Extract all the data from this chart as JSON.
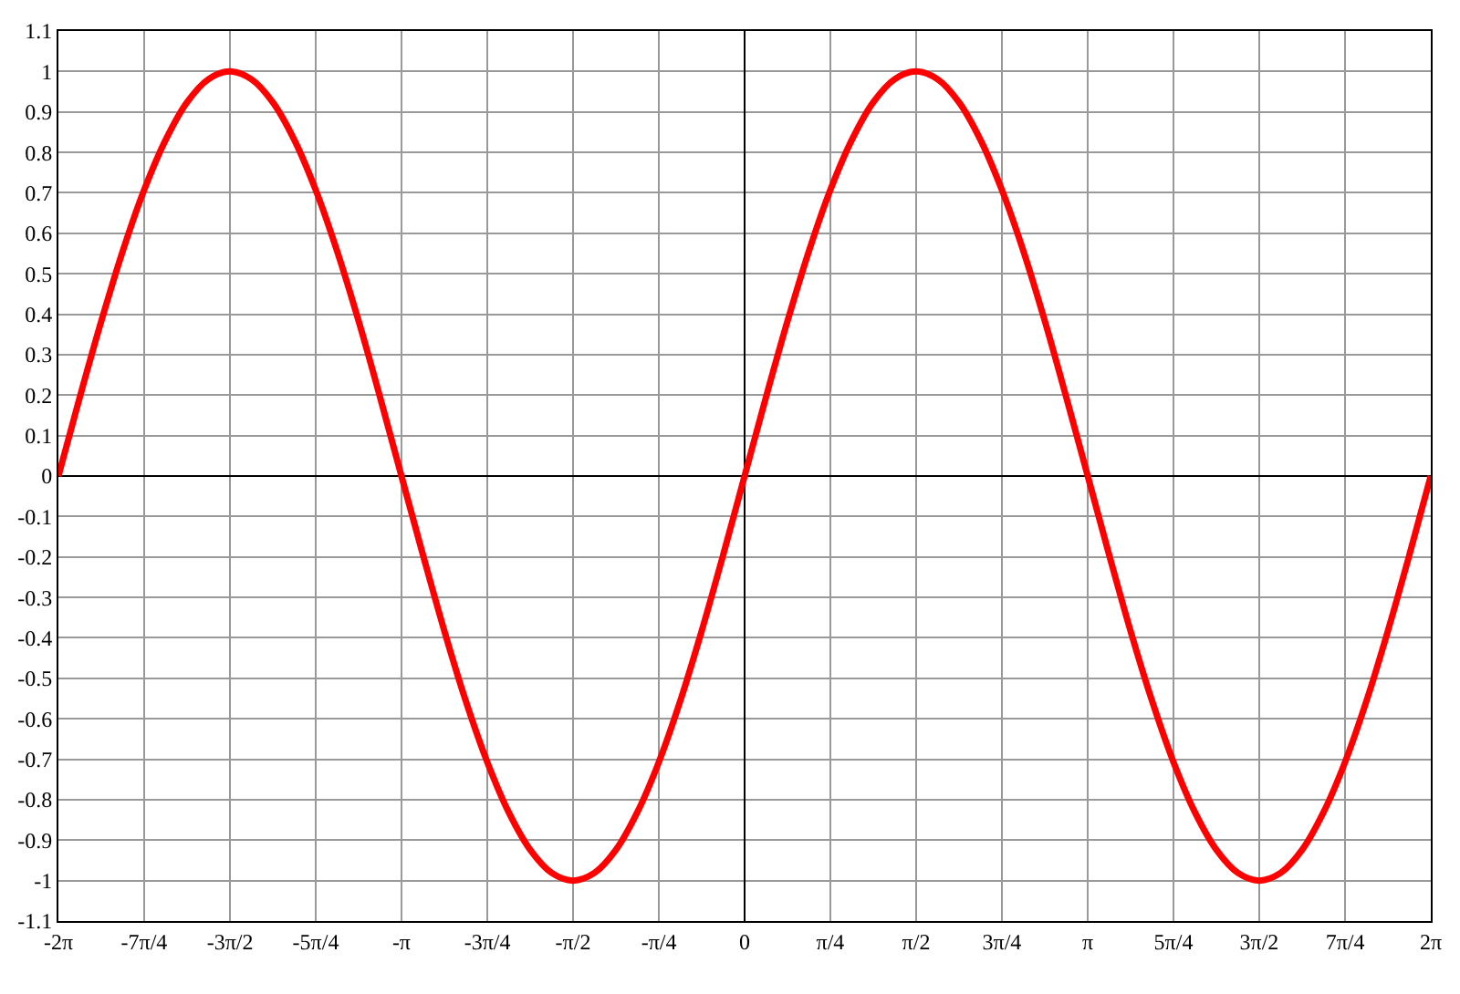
{
  "chart_data": {
    "type": "line",
    "x": [
      -6.283,
      -6.087,
      -5.89,
      -5.694,
      -5.498,
      -5.301,
      -5.105,
      -4.909,
      -4.712,
      -4.516,
      -4.32,
      -4.123,
      -3.927,
      -3.731,
      -3.534,
      -3.338,
      -3.142,
      -2.945,
      -2.749,
      -2.553,
      -2.356,
      -2.16,
      -1.963,
      -1.767,
      -1.571,
      -1.374,
      -1.178,
      -0.982,
      -0.785,
      -0.589,
      -0.393,
      -0.196,
      0,
      0.196,
      0.393,
      0.589,
      0.785,
      0.982,
      1.178,
      1.374,
      1.571,
      1.767,
      1.963,
      2.16,
      2.356,
      2.553,
      2.749,
      2.945,
      3.142,
      3.338,
      3.534,
      3.731,
      3.927,
      4.123,
      4.32,
      4.516,
      4.712,
      4.909,
      5.105,
      5.301,
      5.498,
      5.694,
      5.89,
      6.087,
      6.283
    ],
    "series": [
      {
        "color": "#ff0000",
        "values": [
          0,
          0.195,
          0.383,
          0.556,
          0.707,
          0.831,
          0.924,
          0.981,
          1,
          0.981,
          0.924,
          0.831,
          0.707,
          0.556,
          0.383,
          0.195,
          0,
          -0.195,
          -0.383,
          -0.556,
          -0.707,
          -0.831,
          -0.924,
          -0.981,
          -1,
          -0.981,
          -0.924,
          -0.831,
          -0.707,
          -0.556,
          -0.383,
          -0.195,
          0,
          0.195,
          0.383,
          0.556,
          0.707,
          0.831,
          0.924,
          0.981,
          1,
          0.981,
          0.924,
          0.831,
          0.707,
          0.556,
          0.383,
          0.195,
          0,
          -0.195,
          -0.383,
          -0.556,
          -0.707,
          -0.831,
          -0.924,
          -0.981,
          -1,
          -0.981,
          -0.924,
          -0.831,
          -0.707,
          -0.556,
          -0.383,
          -0.195,
          0
        ]
      }
    ],
    "xlim": [
      -6.283,
      6.283
    ],
    "xticks": [
      {
        "value": -6.283,
        "label": "-2π"
      },
      {
        "value": -5.498,
        "label": "-7π/4"
      },
      {
        "value": -4.712,
        "label": "-3π/2"
      },
      {
        "value": -3.927,
        "label": "-5π/4"
      },
      {
        "value": -3.142,
        "label": "-π"
      },
      {
        "value": -2.356,
        "label": "-3π/4"
      },
      {
        "value": -1.571,
        "label": "-π/2"
      },
      {
        "value": -0.785,
        "label": "-π/4"
      },
      0,
      {
        "value": 0.785,
        "label": "π/4"
      },
      {
        "value": 1.571,
        "label": "π/2"
      },
      {
        "value": 2.356,
        "label": "3π/4"
      },
      {
        "value": 3.142,
        "label": "π"
      },
      {
        "value": 3.927,
        "label": "5π/4"
      },
      {
        "value": 4.712,
        "label": "3π/2"
      },
      {
        "value": 5.498,
        "label": "7π/4"
      },
      {
        "value": 6.283,
        "label": "2π"
      }
    ],
    "ylim": [
      -1.1,
      1.1
    ],
    "yticks": [
      -1.1,
      -1,
      -0.9,
      -0.8,
      -0.7,
      -0.6,
      -0.5,
      -0.4,
      -0.3,
      -0.2,
      -0.1,
      0,
      0.1,
      0.2,
      0.3,
      0.4,
      0.5,
      0.6,
      0.7,
      0.8,
      0.9,
      1,
      1.1
    ],
    "grid": true,
    "marker": "none",
    "line_style": "solid"
  }
}
